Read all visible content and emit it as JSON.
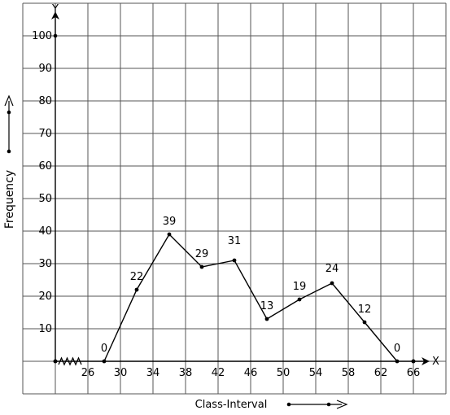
{
  "chart_data": {
    "type": "line",
    "title": "",
    "xlabel": "Class-Interval",
    "ylabel": "Frequency",
    "x_axis_name": "X",
    "y_axis_name": "Y",
    "x_ticks": [
      26,
      30,
      34,
      38,
      42,
      46,
      50,
      54,
      58,
      62,
      66
    ],
    "y_ticks": [
      10,
      20,
      30,
      40,
      50,
      60,
      70,
      80,
      90,
      100
    ],
    "xlim": [
      22,
      70
    ],
    "ylim": [
      0,
      110
    ],
    "x_axis_break": true,
    "grid": true,
    "series": [
      {
        "x": [
          28,
          32,
          36,
          40,
          44,
          48,
          52,
          56,
          60,
          64
        ],
        "y": [
          0,
          22,
          39,
          29,
          31,
          13,
          19,
          24,
          12,
          0
        ],
        "labels": [
          "0",
          "22",
          "39",
          "29",
          "31",
          "13",
          "19",
          "24",
          "12",
          "0"
        ]
      }
    ],
    "colors": {
      "grid": "#555555",
      "line": "#000000",
      "axis": "#000000"
    }
  }
}
